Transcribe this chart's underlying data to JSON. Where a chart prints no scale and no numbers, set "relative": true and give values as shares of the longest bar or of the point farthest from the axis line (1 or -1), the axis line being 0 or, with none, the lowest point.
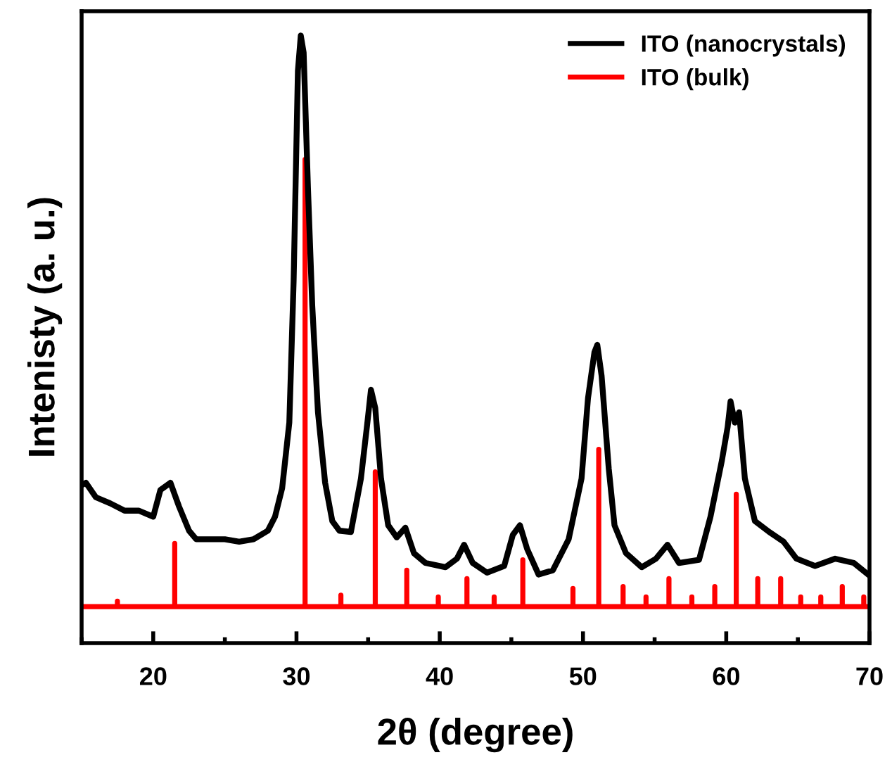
{
  "chart_data": {
    "type": "line",
    "xlabel": "2θ (degree)",
    "ylabel": "Intenisty (a. u.)",
    "relative": true,
    "xlim": [
      15,
      70
    ],
    "xticks": [
      20,
      30,
      40,
      50,
      60,
      70
    ],
    "grid": false,
    "legend": "top right",
    "marker": "none",
    "line_style": "solid",
    "series": [
      {
        "name": "ITO (nanocrystals)",
        "color": "#000000",
        "x": [
          15,
          15.3,
          16,
          17,
          18,
          19,
          20,
          20.5,
          21.2,
          21.8,
          22.5,
          23,
          24,
          25,
          26,
          27,
          28,
          28.5,
          29,
          29.5,
          29.8,
          30.1,
          30.3,
          30.5,
          30.8,
          31.1,
          31.5,
          32,
          32.5,
          33,
          33.8,
          34.5,
          34.95,
          35.2,
          35.5,
          35.9,
          36.4,
          37.0,
          37.6,
          38.2,
          39.0,
          40.4,
          41.2,
          41.7,
          42.3,
          43.3,
          44.5,
          45.1,
          45.6,
          46.1,
          46.9,
          47.9,
          49.0,
          49.9,
          50.35,
          50.8,
          51.0,
          51.3,
          51.8,
          52.2,
          53.0,
          54.1,
          55.1,
          55.9,
          56.7,
          58.1,
          58.9,
          59.7,
          60.1,
          60.3,
          60.6,
          60.9,
          61.3,
          62.0,
          63.0,
          64.0,
          64.9,
          66.2,
          67.6,
          68.9,
          69.9
        ],
        "values": [
          0.26,
          0.264,
          0.24,
          0.23,
          0.218,
          0.218,
          0.208,
          0.252,
          0.264,
          0.225,
          0.185,
          0.171,
          0.171,
          0.171,
          0.167,
          0.171,
          0.185,
          0.208,
          0.255,
          0.363,
          0.595,
          0.942,
          1.0,
          0.972,
          0.75,
          0.556,
          0.38,
          0.264,
          0.201,
          0.185,
          0.183,
          0.271,
          0.363,
          0.417,
          0.387,
          0.271,
          0.194,
          0.174,
          0.19,
          0.148,
          0.132,
          0.125,
          0.139,
          0.162,
          0.132,
          0.116,
          0.127,
          0.178,
          0.194,
          0.155,
          0.113,
          0.12,
          0.171,
          0.271,
          0.403,
          0.479,
          0.491,
          0.44,
          0.287,
          0.194,
          0.148,
          0.125,
          0.139,
          0.162,
          0.132,
          0.137,
          0.208,
          0.301,
          0.356,
          0.398,
          0.363,
          0.38,
          0.271,
          0.201,
          0.183,
          0.167,
          0.139,
          0.127,
          0.139,
          0.132,
          0.113
        ]
      },
      {
        "name": "ITO (bulk)",
        "color": "#ff0000",
        "x": [
          15,
          17.5,
          17.5,
          17.5,
          21.5,
          21.5,
          21.5,
          30.6,
          30.6,
          30.6,
          33.1,
          33.1,
          33.1,
          35.5,
          35.5,
          35.5,
          37.7,
          37.7,
          37.7,
          39.9,
          39.9,
          39.9,
          41.9,
          41.9,
          41.9,
          43.8,
          43.8,
          43.8,
          45.8,
          45.8,
          45.8,
          49.3,
          49.3,
          49.3,
          51.1,
          51.1,
          51.1,
          52.8,
          52.8,
          52.8,
          54.4,
          54.4,
          54.4,
          56.0,
          56.0,
          56.0,
          57.6,
          57.6,
          57.6,
          59.2,
          59.2,
          59.2,
          60.7,
          60.7,
          60.7,
          62.2,
          62.2,
          62.2,
          63.8,
          63.8,
          63.8,
          65.2,
          65.2,
          65.2,
          66.6,
          66.6,
          66.6,
          68.1,
          68.1,
          68.1,
          69.6,
          69.6,
          69.6,
          70
        ],
        "values": [
          0.06,
          0.06,
          0.069,
          0.06,
          0.06,
          0.164,
          0.06,
          0.06,
          0.796,
          0.06,
          0.06,
          0.079,
          0.06,
          0.06,
          0.282,
          0.06,
          0.06,
          0.12,
          0.06,
          0.06,
          0.076,
          0.06,
          0.06,
          0.106,
          0.06,
          0.06,
          0.076,
          0.06,
          0.06,
          0.137,
          0.06,
          0.06,
          0.09,
          0.06,
          0.06,
          0.319,
          0.06,
          0.06,
          0.093,
          0.06,
          0.06,
          0.076,
          0.06,
          0.06,
          0.106,
          0.06,
          0.06,
          0.076,
          0.06,
          0.06,
          0.093,
          0.06,
          0.06,
          0.245,
          0.06,
          0.06,
          0.106,
          0.06,
          0.06,
          0.106,
          0.06,
          0.06,
          0.076,
          0.06,
          0.06,
          0.076,
          0.06,
          0.06,
          0.093,
          0.06,
          0.06,
          0.076,
          0.06,
          0.06
        ]
      }
    ]
  }
}
